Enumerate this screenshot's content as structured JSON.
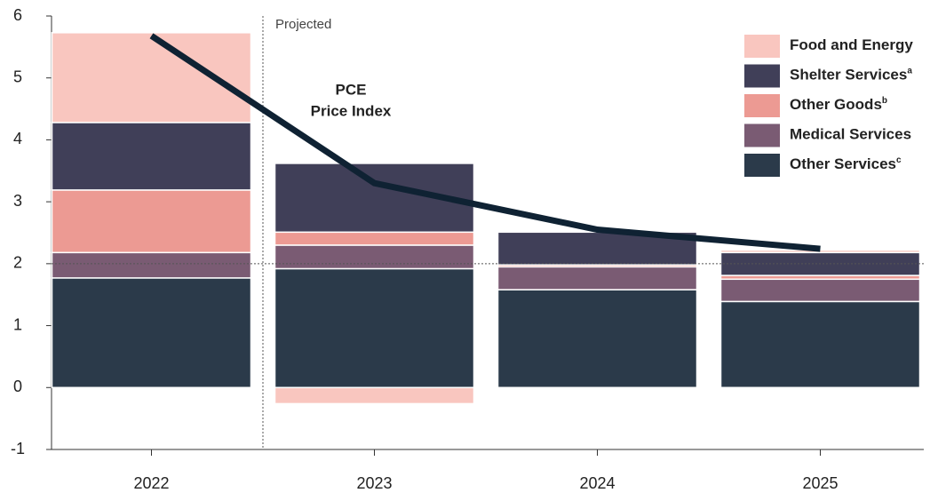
{
  "chart_data": {
    "type": "stacked_bar_line",
    "categories": [
      "2022",
      "2023",
      "2024",
      "2025"
    ],
    "series": [
      {
        "name": "Other Services",
        "note": "c",
        "color": "#2b3a4a",
        "values": [
          1.77,
          1.92,
          1.58,
          1.39
        ]
      },
      {
        "name": "Medical Services",
        "color": "#7a5b73",
        "values": [
          0.41,
          0.38,
          0.37,
          0.36
        ]
      },
      {
        "name": "Other Goods",
        "note": "b",
        "color": "#ec9a93",
        "values": [
          1.01,
          0.21,
          0.03,
          0.06
        ]
      },
      {
        "name": "Shelter Services",
        "note": "a",
        "color": "#403f58",
        "values": [
          1.09,
          1.11,
          0.53,
          0.37
        ]
      },
      {
        "name": "Food and Energy",
        "color": "#f9c6bf",
        "values": [
          1.45,
          -0.26,
          0,
          0.04
        ]
      }
    ],
    "line": {
      "name": [
        "PCE",
        "Price Index"
      ],
      "color": "#0f2233",
      "values": [
        5.68,
        3.3,
        2.55,
        2.24
      ]
    },
    "projected_label": "Projected",
    "reference_line": 2,
    "ylim": [
      -1,
      6
    ],
    "yticks": [
      -1,
      0,
      1,
      2,
      3,
      4,
      5,
      6
    ]
  }
}
